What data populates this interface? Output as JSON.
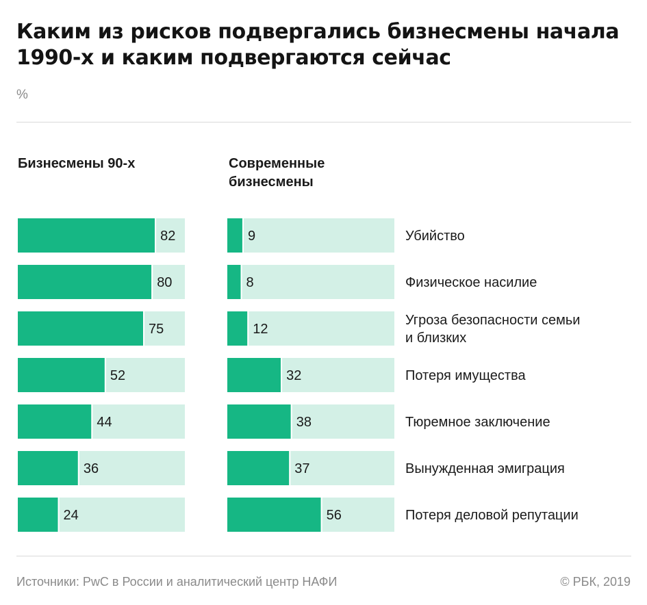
{
  "title": "Каким из рисков подвергались бизнесмены начала 1990-х и каким подвергаются сейчас",
  "unit": "%",
  "colors": {
    "bar": "#16b784",
    "track": "#d3f0e6",
    "text": "#1a1a1a",
    "muted": "#8a8a8a"
  },
  "chart_data": {
    "type": "bar",
    "orientation": "horizontal",
    "categories": [
      [
        "Убийство"
      ],
      [
        "Физическое насилие"
      ],
      [
        "Угроза безопасности семьи",
        "и близких"
      ],
      [
        "Потеря имущества"
      ],
      [
        "Тюремное заключение"
      ],
      [
        "Вынужденная эмиграция"
      ],
      [
        "Потеря деловой репутации"
      ]
    ],
    "series": [
      {
        "name": "Бизнесмены 90-х",
        "values": [
          82,
          80,
          75,
          52,
          44,
          36,
          24
        ]
      },
      {
        "name": "Современные бизнесмены",
        "name_lines": [
          "Современные",
          "бизнесмены"
        ],
        "values": [
          9,
          8,
          12,
          32,
          38,
          37,
          56
        ]
      }
    ],
    "xlim": [
      0,
      100
    ]
  },
  "footer": {
    "source": "Источники: PwC в России и аналитический центр НАФИ",
    "copyright": "© РБК, 2019"
  }
}
